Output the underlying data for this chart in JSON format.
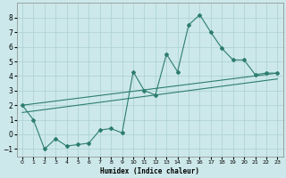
{
  "xlabel": "Humidex (Indice chaleur)",
  "bg_color": "#cce8ea",
  "grid_color": "#aacfd4",
  "line_color": "#2d7d6e",
  "xlim": [
    -0.5,
    23.5
  ],
  "ylim": [
    -1.5,
    9.0
  ],
  "yticks": [
    -1,
    0,
    1,
    2,
    3,
    4,
    5,
    6,
    7,
    8
  ],
  "xticks": [
    0,
    1,
    2,
    3,
    4,
    5,
    6,
    7,
    8,
    9,
    10,
    11,
    12,
    13,
    14,
    15,
    16,
    17,
    18,
    19,
    20,
    21,
    22,
    23
  ],
  "line1_x": [
    0,
    1,
    2,
    3,
    4,
    5,
    6,
    7,
    8,
    9,
    10,
    11,
    12,
    13,
    14,
    15,
    16,
    17,
    18,
    19,
    20,
    21,
    22,
    23
  ],
  "line1_y": [
    2.0,
    1.0,
    -1.0,
    -0.3,
    -0.8,
    -0.7,
    -0.6,
    0.3,
    0.4,
    0.1,
    4.3,
    3.0,
    2.7,
    5.5,
    4.3,
    7.5,
    8.2,
    7.0,
    5.9,
    5.1,
    5.1,
    4.1,
    4.2,
    4.2
  ],
  "line2_x": [
    0,
    23
  ],
  "line2_y": [
    2.0,
    4.2
  ],
  "line3_x": [
    0,
    23
  ],
  "line3_y": [
    1.5,
    3.8
  ]
}
